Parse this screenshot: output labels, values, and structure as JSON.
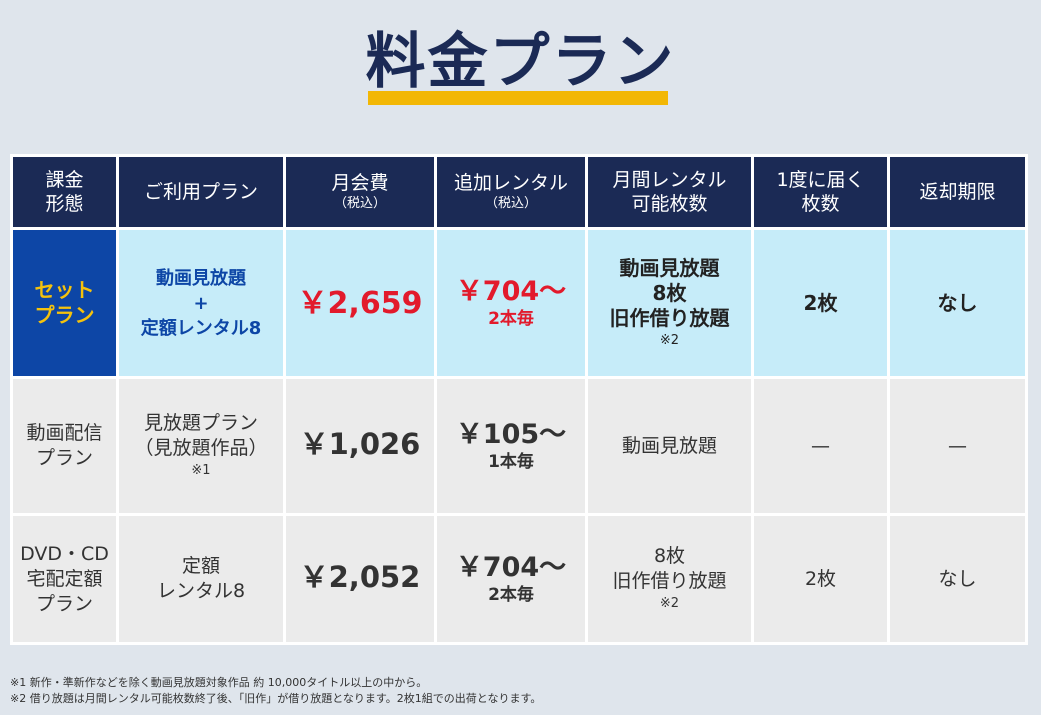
{
  "title": "料金プラン",
  "colors": {
    "header_bg": "#1b2a55",
    "accent_yellow": "#f2b705",
    "set_label_bg": "#0d46a6",
    "set_row_bg": "#c6ecf9",
    "price_red": "#e21a2c",
    "row_gray": "#ebebeb"
  },
  "headers": [
    {
      "line1": "課金",
      "line2": "形態",
      "sub": ""
    },
    {
      "line1": "ご利用プラン",
      "line2": "",
      "sub": ""
    },
    {
      "line1": "月会費",
      "line2": "",
      "sub": "（税込）"
    },
    {
      "line1": "追加レンタル",
      "line2": "",
      "sub": "（税込）"
    },
    {
      "line1": "月間レンタル",
      "line2": "可能枚数",
      "sub": ""
    },
    {
      "line1": "1度に届く",
      "line2": "枚数",
      "sub": ""
    },
    {
      "line1": "返却期限",
      "line2": "",
      "sub": ""
    }
  ],
  "rows": [
    {
      "label": [
        "セット",
        "プラン"
      ],
      "plan": [
        "動画見放題",
        "+",
        "定額レンタル8"
      ],
      "plan_note": "",
      "price": "￥2,659",
      "additional_price": "￥704～",
      "additional_unit": "2本毎",
      "monthly": [
        "動画見放題",
        "8枚",
        "旧作借り放題"
      ],
      "monthly_note": "※2",
      "per_delivery": "2枚",
      "return_deadline": "なし"
    },
    {
      "label": [
        "動画配信",
        "プラン"
      ],
      "plan": [
        "見放題プラン",
        "（見放題作品）"
      ],
      "plan_note": "※1",
      "price": "￥1,026",
      "additional_price": "￥105～",
      "additional_unit": "1本毎",
      "monthly": [
        "動画見放題"
      ],
      "monthly_note": "",
      "per_delivery": "—",
      "return_deadline": "—"
    },
    {
      "label": [
        "DVD・CD",
        "宅配定額",
        "プラン"
      ],
      "plan": [
        "定額",
        "レンタル8"
      ],
      "plan_note": "",
      "price": "￥2,052",
      "additional_price": "￥704～",
      "additional_unit": "2本毎",
      "monthly": [
        "8枚",
        "旧作借り放題"
      ],
      "monthly_note": "※2",
      "per_delivery": "2枚",
      "return_deadline": "なし"
    }
  ],
  "footnotes": [
    "※1 新作・準新作などを除く動画見放題対象作品 約 10,000タイトル以上の中から。",
    "※2 借り放題は月間レンタル可能枚数終了後、「旧作」が借り放題となります。2枚1組での出荷となります。"
  ]
}
